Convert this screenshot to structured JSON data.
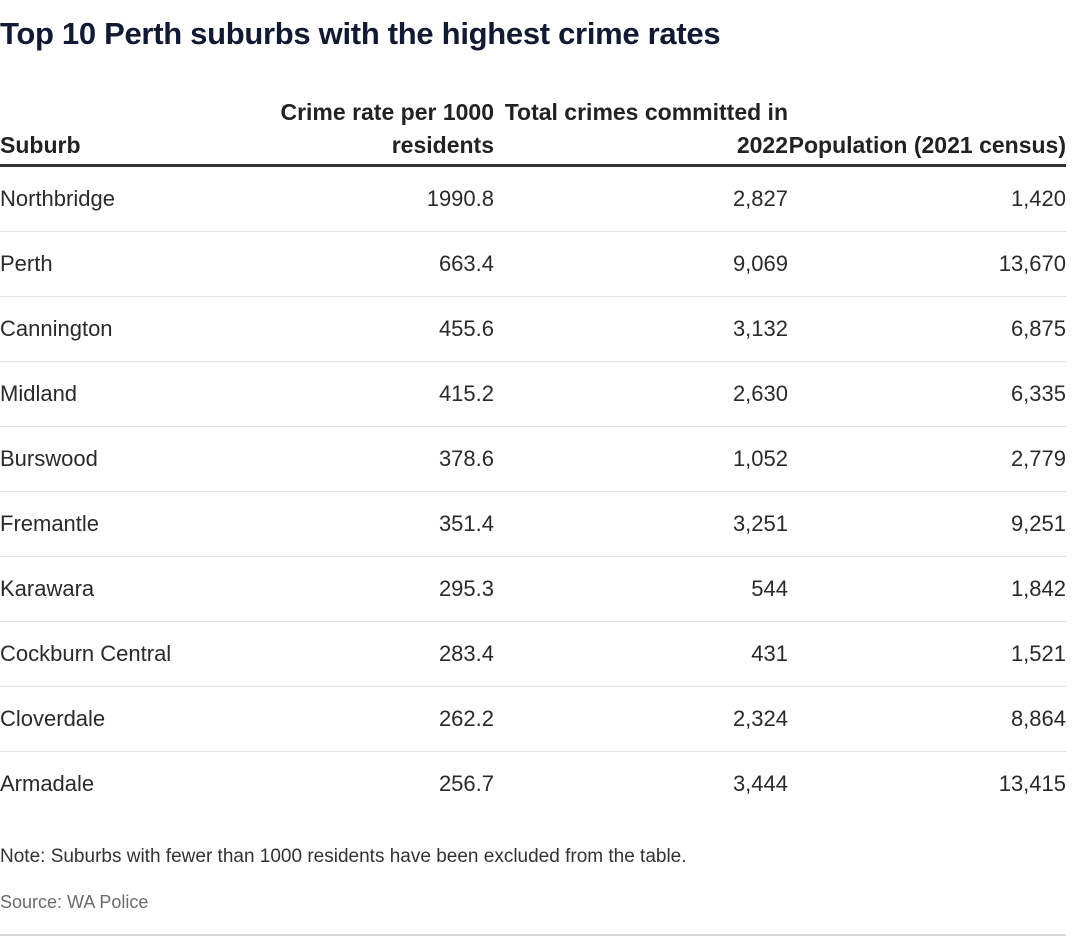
{
  "chart_data": {
    "type": "table",
    "title": "Top 10 Perth suburbs with the highest crime rates",
    "columns": [
      "Suburb",
      "Crime rate per 1000 residents",
      "Total crimes committed in 2022",
      "Population (2021 census)"
    ],
    "rows": [
      [
        "Northbridge",
        "1990.8",
        "2,827",
        "1,420"
      ],
      [
        "Perth",
        "663.4",
        "9,069",
        "13,670"
      ],
      [
        "Cannington",
        "455.6",
        "3,132",
        "6,875"
      ],
      [
        "Midland",
        "415.2",
        "2,630",
        "6,335"
      ],
      [
        "Burswood",
        "378.6",
        "1,052",
        "2,779"
      ],
      [
        "Fremantle",
        "351.4",
        "3,251",
        "9,251"
      ],
      [
        "Karawara",
        "295.3",
        "544",
        "1,842"
      ],
      [
        "Cockburn Central",
        "283.4",
        "431",
        "1,521"
      ],
      [
        "Cloverdale",
        "262.2",
        "2,324",
        "8,864"
      ],
      [
        "Armadale",
        "256.7",
        "3,444",
        "13,415"
      ]
    ],
    "note": "Note: Suburbs with fewer than 1000 residents have been excluded from the table.",
    "source": "Source: WA Police"
  }
}
